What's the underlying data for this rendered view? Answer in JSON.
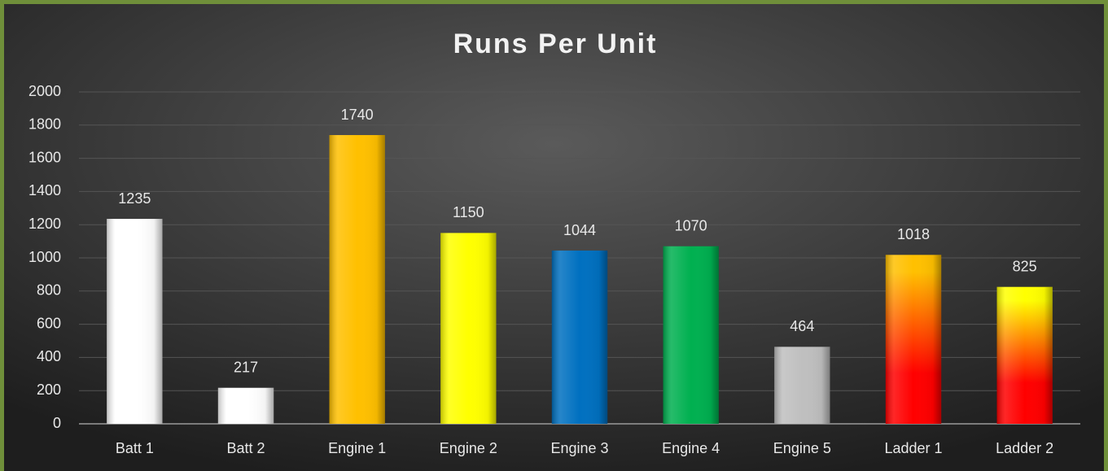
{
  "chart_data": {
    "type": "bar",
    "title": "Runs Per Unit",
    "categories": [
      "Batt 1",
      "Batt 2",
      "Engine 1",
      "Engine 2",
      "Engine 3",
      "Engine 4",
      "Engine 5",
      "Ladder 1",
      "Ladder 2"
    ],
    "values": [
      1235,
      217,
      1740,
      1150,
      1044,
      1070,
      464,
      1018,
      825
    ],
    "colors": [
      "#ffffff",
      "#ffffff",
      "#ffc000",
      "#ffff00",
      "#0070c0",
      "#00b050",
      "#bfbfbf",
      [
        "#ffc000",
        "#ff0000"
      ],
      [
        "#ffff00",
        "#ff0000"
      ]
    ],
    "ylim": [
      0,
      2000
    ],
    "yticks": [
      0,
      200,
      400,
      600,
      800,
      1000,
      1200,
      1400,
      1600,
      1800,
      2000
    ],
    "grid": true
  }
}
